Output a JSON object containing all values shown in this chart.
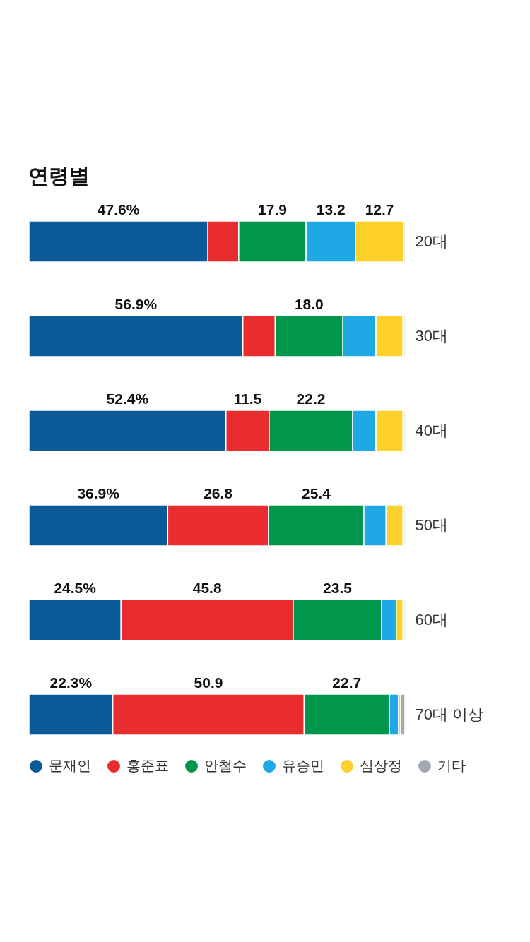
{
  "chart_data": {
    "type": "bar",
    "orientation": "horizontal",
    "stacked": true,
    "title": "연령별",
    "categories": [
      "20대",
      "30대",
      "40대",
      "50대",
      "60대",
      "70대 이상"
    ],
    "xlim": [
      0,
      100
    ],
    "tick_labels": "y",
    "legend": "bottom",
    "series": [
      {
        "name": "문재인",
        "color": "#0b5b98",
        "values": [
          47.6,
          56.9,
          52.4,
          36.9,
          24.5,
          22.3
        ],
        "value_labels": [
          "47.6%",
          "56.9%",
          "52.4%",
          "36.9%",
          "24.5%",
          "22.3%"
        ]
      },
      {
        "name": "홍준표",
        "color": "#e92d2f",
        "values": [
          8.2,
          8.6,
          11.5,
          26.8,
          45.8,
          50.9
        ],
        "value_labels": [
          null,
          null,
          "11.5",
          "26.8",
          "45.8",
          "50.9"
        ]
      },
      {
        "name": "안철수",
        "color": "#00964b",
        "values": [
          17.9,
          18.0,
          22.2,
          25.4,
          23.5,
          22.7
        ],
        "value_labels": [
          "17.9",
          "18.0",
          "22.2",
          "25.4",
          "23.5",
          "22.7"
        ]
      },
      {
        "name": "유승민",
        "color": "#1ea9e6",
        "values": [
          13.2,
          8.8,
          6.2,
          5.9,
          3.9,
          2.4
        ],
        "value_labels": [
          "13.2",
          null,
          null,
          null,
          null,
          null
        ]
      },
      {
        "name": "심상정",
        "color": "#fdd02a",
        "values": [
          12.7,
          7.2,
          7.2,
          4.5,
          1.8,
          0.6
        ],
        "value_labels": [
          "12.7",
          null,
          null,
          null,
          null,
          null
        ]
      },
      {
        "name": "기타",
        "color": "#a3a8b3",
        "values": [
          0.4,
          0.5,
          0.5,
          0.5,
          0.5,
          1.1
        ]
      }
    ]
  }
}
